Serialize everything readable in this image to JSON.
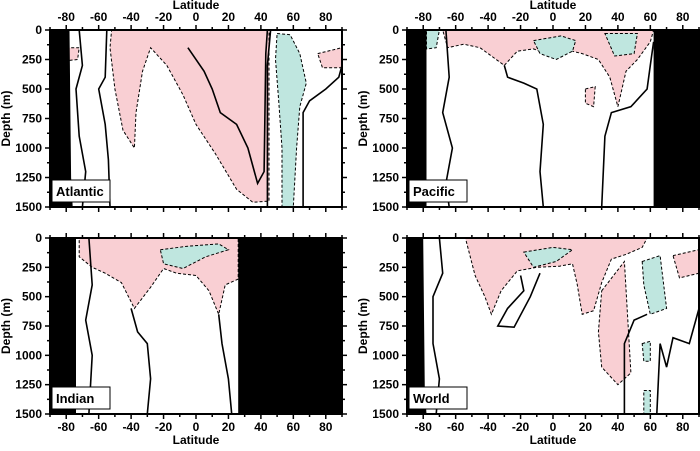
{
  "chart_data": [
    {
      "type": "heatmap",
      "title": "Atlantic",
      "xlabel": "Latitude",
      "xlabel_position": "top",
      "ylabel": "Depth (m)",
      "xlim": [
        -90,
        90
      ],
      "ylim": [
        1500,
        0
      ],
      "xticks": [
        "-80",
        "-60",
        "-40",
        "-20",
        "0",
        "20",
        "40",
        "60",
        "80"
      ],
      "yticks": [
        "0",
        "250",
        "500",
        "750",
        "1000",
        "1250",
        "1500"
      ],
      "land": [
        [
          [
            -90,
            0
          ],
          [
            -78,
            0
          ],
          [
            -77,
            1250
          ],
          [
            -76,
            1500
          ],
          [
            -90,
            1500
          ]
        ]
      ],
      "positive_regions": [
        [
          [
            -52,
            0
          ],
          [
            45,
            0
          ],
          [
            45,
            1450
          ],
          [
            35,
            1460
          ],
          [
            25,
            1350
          ],
          [
            12,
            1050
          ],
          [
            0,
            800
          ],
          [
            -8,
            550
          ],
          [
            -18,
            300
          ],
          [
            -28,
            150
          ],
          [
            -33,
            350
          ],
          [
            -37,
            700
          ],
          [
            -38,
            1000
          ],
          [
            -45,
            850
          ],
          [
            -50,
            500
          ],
          [
            -53,
            150
          ]
        ],
        [
          [
            75,
            200
          ],
          [
            90,
            150
          ],
          [
            90,
            320
          ],
          [
            78,
            320
          ]
        ],
        [
          [
            -80,
            150
          ],
          [
            -72,
            150
          ],
          [
            -73,
            250
          ],
          [
            -80,
            260
          ]
        ]
      ],
      "negative_regions": [
        [
          [
            50,
            30
          ],
          [
            58,
            40
          ],
          [
            64,
            200
          ],
          [
            68,
            450
          ],
          [
            64,
            650
          ],
          [
            62,
            1000
          ],
          [
            60,
            1500
          ],
          [
            53,
            1500
          ],
          [
            53,
            1000
          ],
          [
            51,
            600
          ],
          [
            49,
            250
          ]
        ]
      ],
      "contours": [
        [
          [
            -72,
            0
          ],
          [
            -70,
            300
          ],
          [
            -74,
            500
          ],
          [
            -72,
            900
          ],
          [
            -68,
            1200
          ],
          [
            -70,
            1500
          ]
        ],
        [
          [
            -55,
            0
          ],
          [
            -56,
            400
          ],
          [
            -60,
            500
          ],
          [
            -56,
            800
          ],
          [
            -54,
            1100
          ],
          [
            -53,
            1500
          ]
        ],
        [
          [
            -5,
            150
          ],
          [
            5,
            350
          ],
          [
            10,
            500
          ],
          [
            15,
            700
          ],
          [
            25,
            800
          ],
          [
            32,
            1000
          ],
          [
            38,
            1300
          ],
          [
            42,
            1200
          ],
          [
            43,
            200
          ],
          [
            44,
            0
          ]
        ],
        [
          [
            44,
            1500
          ],
          [
            44,
            300
          ],
          [
            46,
            0
          ]
        ],
        [
          [
            66,
            1500
          ],
          [
            66,
            700
          ],
          [
            70,
            600
          ],
          [
            80,
            500
          ],
          [
            88,
            400
          ],
          [
            90,
            300
          ]
        ]
      ]
    },
    {
      "type": "heatmap",
      "title": "Pacific",
      "xlabel": "Latitude",
      "xlabel_position": "top",
      "ylabel": "Depth (m)",
      "xlim": [
        -90,
        90
      ],
      "ylim": [
        1500,
        0
      ],
      "xticks": [
        "-80",
        "-60",
        "-40",
        "-20",
        "0",
        "20",
        "40",
        "60",
        "80"
      ],
      "yticks": [
        "0",
        "250",
        "500",
        "750",
        "1000",
        "1250",
        "1500"
      ],
      "land": [
        [
          [
            -90,
            0
          ],
          [
            -78,
            0
          ],
          [
            -78,
            1500
          ],
          [
            -90,
            1500
          ]
        ],
        [
          [
            62,
            0
          ],
          [
            90,
            0
          ],
          [
            90,
            1500
          ],
          [
            62,
            1500
          ]
        ]
      ],
      "positive_regions": [
        [
          [
            -68,
            0
          ],
          [
            62,
            0
          ],
          [
            60,
            100
          ],
          [
            52,
            250
          ],
          [
            45,
            350
          ],
          [
            40,
            650
          ],
          [
            35,
            400
          ],
          [
            28,
            250
          ],
          [
            18,
            200
          ],
          [
            12,
            180
          ],
          [
            0,
            220
          ],
          [
            -12,
            160
          ],
          [
            -22,
            180
          ],
          [
            -30,
            300
          ],
          [
            -38,
            220
          ],
          [
            -45,
            150
          ],
          [
            -55,
            120
          ],
          [
            -65,
            150
          ]
        ],
        [
          [
            20,
            500
          ],
          [
            26,
            480
          ],
          [
            25,
            650
          ],
          [
            20,
            620
          ]
        ]
      ],
      "negative_regions": [
        [
          [
            -12,
            90
          ],
          [
            5,
            50
          ],
          [
            14,
            90
          ],
          [
            12,
            180
          ],
          [
            2,
            250
          ],
          [
            -8,
            200
          ]
        ],
        [
          [
            32,
            30
          ],
          [
            52,
            30
          ],
          [
            50,
            200
          ],
          [
            38,
            220
          ]
        ],
        [
          [
            -78,
            0
          ],
          [
            -70,
            0
          ],
          [
            -72,
            150
          ],
          [
            -78,
            160
          ]
        ]
      ],
      "contours": [
        [
          [
            -66,
            0
          ],
          [
            -64,
            400
          ],
          [
            -68,
            700
          ],
          [
            -62,
            1000
          ],
          [
            -66,
            1300
          ],
          [
            -64,
            1500
          ]
        ],
        [
          [
            -30,
            300
          ],
          [
            -28,
            400
          ],
          [
            -18,
            450
          ],
          [
            -10,
            500
          ],
          [
            -6,
            800
          ],
          [
            -8,
            1200
          ],
          [
            -6,
            1500
          ]
        ],
        [
          [
            30,
            1500
          ],
          [
            32,
            900
          ],
          [
            36,
            700
          ],
          [
            48,
            650
          ],
          [
            58,
            500
          ],
          [
            60,
            300
          ],
          [
            62,
            100
          ]
        ]
      ]
    },
    {
      "type": "heatmap",
      "title": "Indian",
      "xlabel": "Latitude",
      "xlabel_position": "bottom",
      "ylabel": "Depth (m)",
      "xlim": [
        -90,
        90
      ],
      "ylim": [
        1500,
        0
      ],
      "xticks": [
        "-80",
        "-60",
        "-40",
        "-20",
        "0",
        "20",
        "40",
        "60",
        "80"
      ],
      "yticks": [
        "0",
        "250",
        "500",
        "750",
        "1000",
        "1250",
        "1500"
      ],
      "land": [
        [
          [
            -90,
            0
          ],
          [
            -74,
            0
          ],
          [
            -74,
            1500
          ],
          [
            -90,
            1500
          ]
        ],
        [
          [
            26,
            0
          ],
          [
            90,
            0
          ],
          [
            90,
            1500
          ],
          [
            26,
            1500
          ]
        ]
      ],
      "positive_regions": [
        [
          [
            -72,
            0
          ],
          [
            26,
            0
          ],
          [
            26,
            350
          ],
          [
            18,
            400
          ],
          [
            14,
            650
          ],
          [
            8,
            450
          ],
          [
            0,
            320
          ],
          [
            -12,
            300
          ],
          [
            -20,
            260
          ],
          [
            -28,
            420
          ],
          [
            -38,
            600
          ],
          [
            -46,
            380
          ],
          [
            -56,
            300
          ],
          [
            -64,
            250
          ],
          [
            -72,
            160
          ]
        ]
      ],
      "negative_regions": [
        [
          [
            -22,
            100
          ],
          [
            -5,
            70
          ],
          [
            14,
            50
          ],
          [
            20,
            100
          ],
          [
            6,
            160
          ],
          [
            -8,
            260
          ],
          [
            -20,
            220
          ]
        ]
      ],
      "contours": [
        [
          [
            -66,
            0
          ],
          [
            -64,
            400
          ],
          [
            -68,
            700
          ],
          [
            -64,
            1000
          ],
          [
            -66,
            1500
          ]
        ],
        [
          [
            -40,
            600
          ],
          [
            -36,
            800
          ],
          [
            -30,
            900
          ],
          [
            -28,
            1200
          ],
          [
            -30,
            1500
          ]
        ],
        [
          [
            14,
            650
          ],
          [
            16,
            900
          ],
          [
            20,
            1200
          ],
          [
            22,
            1500
          ]
        ]
      ]
    },
    {
      "type": "heatmap",
      "title": "World",
      "xlabel": "Latitude",
      "xlabel_position": "bottom",
      "ylabel": "Depth (m)",
      "xlim": [
        -90,
        90
      ],
      "ylim": [
        1500,
        0
      ],
      "xticks": [
        "-80",
        "-60",
        "-40",
        "-20",
        "0",
        "20",
        "40",
        "60",
        "80"
      ],
      "yticks": [
        "0",
        "250",
        "500",
        "750",
        "1000",
        "1250",
        "1500"
      ],
      "land": [
        [
          [
            -90,
            0
          ],
          [
            -80,
            0
          ],
          [
            -79,
            1300
          ],
          [
            -78,
            1500
          ],
          [
            -90,
            1500
          ]
        ]
      ],
      "positive_regions": [
        [
          [
            -54,
            0
          ],
          [
            58,
            0
          ],
          [
            55,
            80
          ],
          [
            45,
            140
          ],
          [
            36,
            180
          ],
          [
            30,
            380
          ],
          [
            25,
            620
          ],
          [
            18,
            650
          ],
          [
            15,
            400
          ],
          [
            12,
            220
          ],
          [
            4,
            240
          ],
          [
            -10,
            250
          ],
          [
            -22,
            280
          ],
          [
            -32,
            450
          ],
          [
            -38,
            650
          ],
          [
            -42,
            500
          ],
          [
            -48,
            320
          ]
        ],
        [
          [
            30,
            450
          ],
          [
            44,
            200
          ],
          [
            48,
            1150
          ],
          [
            40,
            1250
          ],
          [
            30,
            1100
          ],
          [
            28,
            800
          ]
        ],
        [
          [
            74,
            150
          ],
          [
            90,
            100
          ],
          [
            90,
            300
          ],
          [
            78,
            340
          ]
        ]
      ],
      "negative_regions": [
        [
          [
            -18,
            120
          ],
          [
            0,
            80
          ],
          [
            12,
            100
          ],
          [
            2,
            200
          ],
          [
            -12,
            250
          ]
        ],
        [
          [
            55,
            200
          ],
          [
            66,
            150
          ],
          [
            70,
            600
          ],
          [
            60,
            650
          ],
          [
            56,
            400
          ]
        ],
        [
          [
            55,
            900
          ],
          [
            60,
            880
          ],
          [
            60,
            1050
          ],
          [
            56,
            1050
          ]
        ],
        [
          [
            56,
            1300
          ],
          [
            60,
            1300
          ],
          [
            60,
            1500
          ],
          [
            56,
            1500
          ]
        ]
      ],
      "contours": [
        [
          [
            -70,
            0
          ],
          [
            -68,
            300
          ],
          [
            -74,
            500
          ],
          [
            -74,
            900
          ],
          [
            -70,
            1200
          ],
          [
            -72,
            1500
          ]
        ],
        [
          [
            -20,
            320
          ],
          [
            -18,
            450
          ],
          [
            -28,
            600
          ],
          [
            -34,
            750
          ],
          [
            -24,
            760
          ],
          [
            -14,
            500
          ],
          [
            -8,
            300
          ]
        ],
        [
          [
            44,
            1500
          ],
          [
            44,
            900
          ],
          [
            50,
            700
          ],
          [
            58,
            650
          ]
        ],
        [
          [
            64,
            1500
          ],
          [
            66,
            900
          ],
          [
            70,
            1100
          ],
          [
            74,
            850
          ],
          [
            84,
            900
          ],
          [
            88,
            700
          ],
          [
            90,
            600
          ]
        ]
      ]
    }
  ],
  "colors": {
    "positive": "#f9cfd3",
    "negative": "#bfe6df",
    "land": "#000000",
    "contour": "#000000"
  }
}
